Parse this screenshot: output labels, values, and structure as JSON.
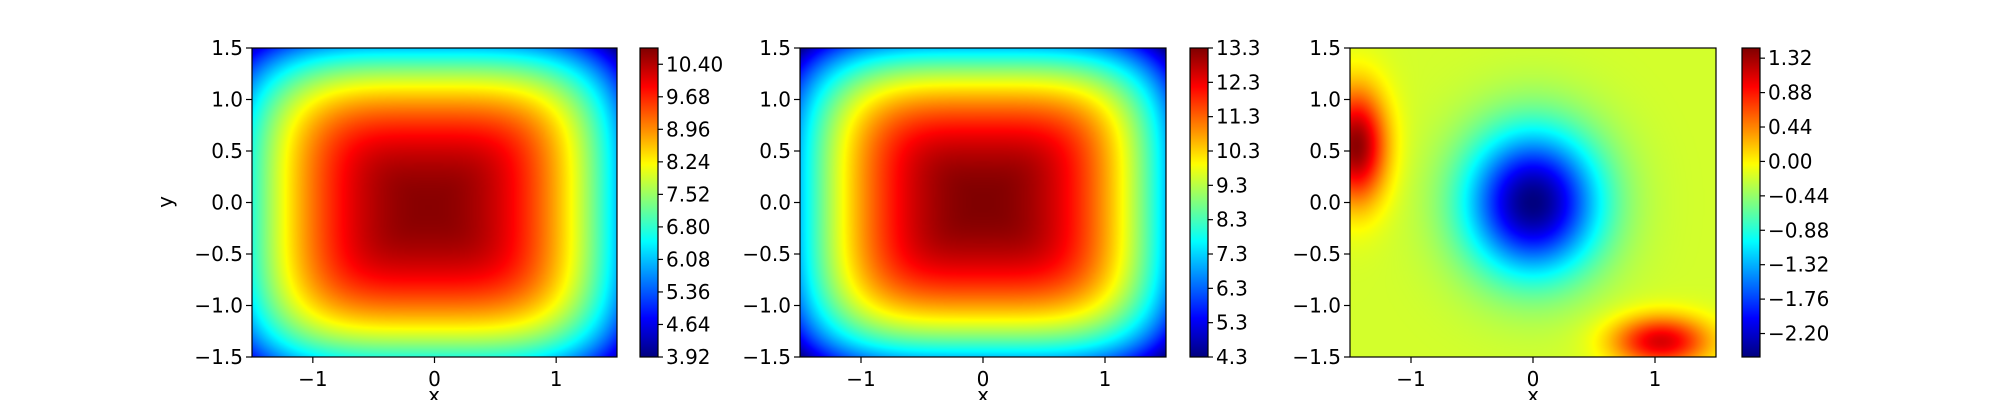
{
  "chart_data": [
    {
      "type": "heatmap",
      "title": "",
      "xlabel": "x",
      "ylabel": "y",
      "xlim": [
        -1.5,
        1.5
      ],
      "ylim": [
        -1.5,
        1.5
      ],
      "xticks": [
        "−1",
        "0",
        "1"
      ],
      "yticks": [
        "1.5",
        "1.0",
        "0.5",
        "0.0",
        "−0.5",
        "−1.0",
        "−1.5"
      ],
      "colormap": "jet",
      "colorbar": {
        "range": [
          3.92,
          10.76
        ],
        "ticks": [
          3.92,
          4.64,
          5.36,
          6.08,
          6.8,
          7.52,
          8.24,
          8.96,
          9.68,
          10.4
        ],
        "tick_labels": [
          "3.92",
          "4.64",
          "5.36",
          "6.08",
          "6.80",
          "7.52",
          "8.24",
          "8.96",
          "9.68",
          "10.40"
        ]
      },
      "field": {
        "kind": "peak",
        "center": [
          -0.05,
          -0.05
        ],
        "peak": 10.7,
        "corner_min": 3.95,
        "note_shape": "smooth radial peak, rounded-square contours"
      }
    },
    {
      "type": "heatmap",
      "title": "",
      "xlabel": "x",
      "ylabel": "",
      "xlim": [
        -1.5,
        1.5
      ],
      "ylim": [
        -1.5,
        1.5
      ],
      "xticks": [
        "−1",
        "0",
        "1"
      ],
      "yticks": [
        "1.5",
        "1.0",
        "0.5",
        "0.0",
        "−0.5",
        "−1.0",
        "−1.5"
      ],
      "colormap": "jet",
      "colorbar": {
        "range": [
          4.3,
          13.3
        ],
        "ticks": [
          4.3,
          5.3,
          6.3,
          7.3,
          8.3,
          9.3,
          10.3,
          11.3,
          12.3,
          13.3
        ],
        "tick_labels": [
          "4.3",
          "5.3",
          "6.3",
          "7.3",
          "8.3",
          "9.3",
          "10.3",
          "11.3",
          "12.3",
          "13.3"
        ]
      },
      "field": {
        "kind": "peak",
        "center": [
          0.0,
          0.0
        ],
        "peak": 13.3,
        "corner_min": 4.3
      }
    },
    {
      "type": "heatmap",
      "title": "",
      "xlabel": "x",
      "ylabel": "",
      "xlim": [
        -1.5,
        1.5
      ],
      "ylim": [
        -1.5,
        1.5
      ],
      "xticks": [
        "−1",
        "0",
        "1"
      ],
      "yticks": [
        "1.5",
        "1.0",
        "0.5",
        "0.0",
        "−0.5",
        "−1.0",
        "−1.5"
      ],
      "colormap": "jet",
      "colorbar": {
        "range": [
          -2.5,
          1.45
        ],
        "ticks": [
          -2.2,
          -1.76,
          -1.32,
          -0.88,
          -0.44,
          0.0,
          0.44,
          0.88,
          1.32
        ],
        "tick_labels": [
          "−2.20",
          "−1.76",
          "−1.32",
          "−0.88",
          "−0.44",
          "0.00",
          "0.44",
          "0.88",
          "1.32"
        ]
      },
      "field": {
        "kind": "difference",
        "trough": {
          "center": [
            0.0,
            0.0
          ],
          "value": -2.5
        },
        "highs": [
          {
            "center": [
              -1.45,
              0.55
            ],
            "value": 1.4
          },
          {
            "center": [
              1.05,
              -1.35
            ],
            "value": 1.1
          }
        ],
        "background": -0.2
      }
    }
  ]
}
